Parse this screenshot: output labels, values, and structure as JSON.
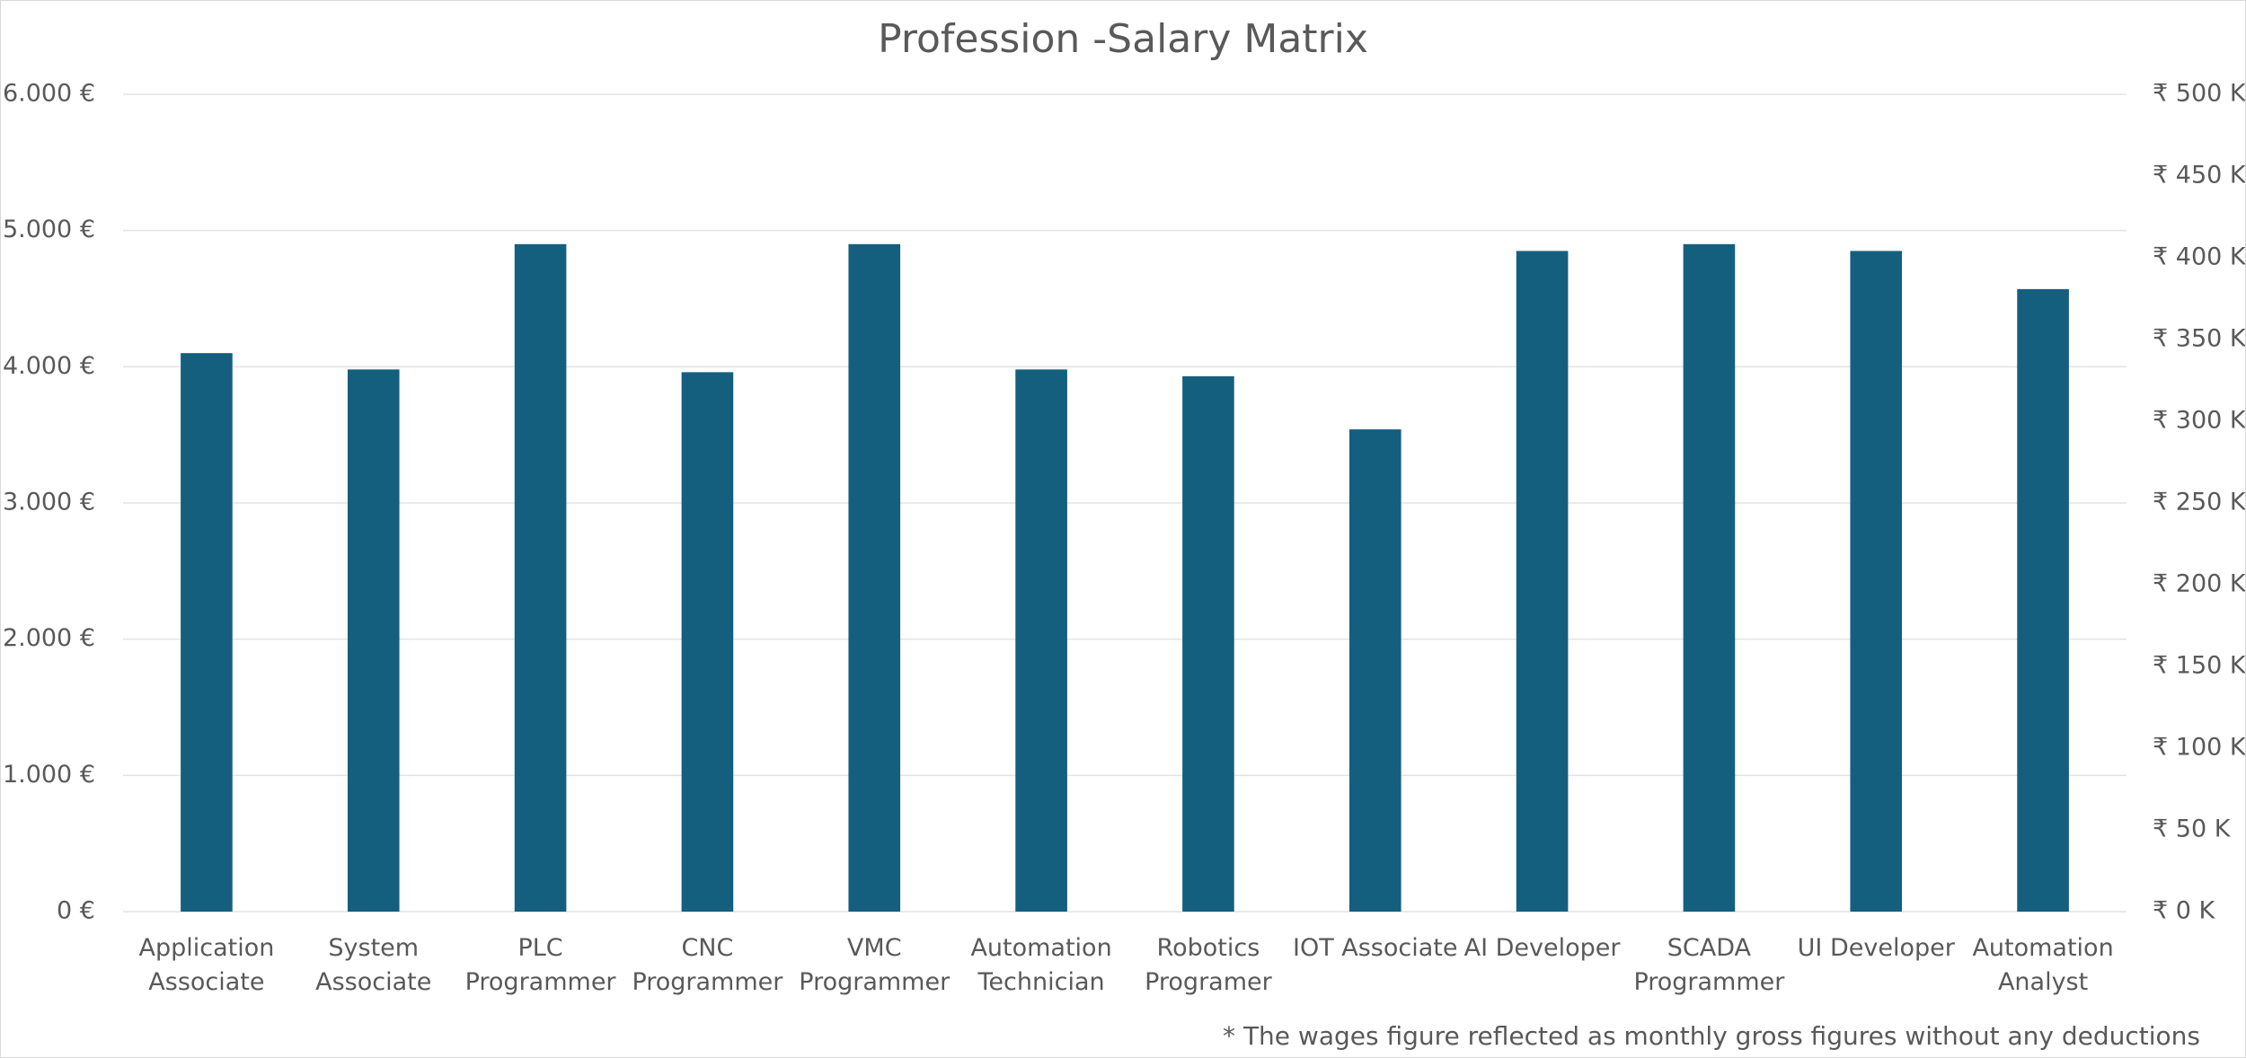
{
  "chart_data": {
    "type": "bar",
    "title": "Profession -Salary Matrix",
    "categories": [
      "Application Associate",
      "System Associate",
      "PLC Programmer",
      "CNC Programmer",
      "VMC Programmer",
      "Automation Technician",
      "Robotics Programer",
      "IOT Associate",
      "AI Developer",
      "SCADA Programmer",
      "UI Developer",
      "Automation Analyst"
    ],
    "series": [
      {
        "name": "Salary",
        "color": "#155f7e",
        "values": [
          4100,
          3980,
          4900,
          3960,
          4900,
          3980,
          3930,
          3540,
          4850,
          4900,
          4850,
          4570
        ]
      }
    ],
    "ylim": [
      0,
      6000
    ],
    "yticks": [
      {
        "value": 0,
        "label": "0 €"
      },
      {
        "value": 1000,
        "label": "1.000 €"
      },
      {
        "value": 2000,
        "label": "2.000 €"
      },
      {
        "value": 3000,
        "label": "3.000 €"
      },
      {
        "value": 4000,
        "label": "4.000 €"
      },
      {
        "value": 5000,
        "label": "5.000 €"
      },
      {
        "value": 6000,
        "label": "6.000 €"
      }
    ],
    "y2lim": [
      0,
      500
    ],
    "y2ticks": [
      {
        "value": 0,
        "label": "₹ 0 K"
      },
      {
        "value": 50,
        "label": "₹ 50 K"
      },
      {
        "value": 100,
        "label": "₹ 100 K"
      },
      {
        "value": 150,
        "label": "₹ 150 K"
      },
      {
        "value": 200,
        "label": "₹ 200 K"
      },
      {
        "value": 250,
        "label": "₹ 250 K"
      },
      {
        "value": 300,
        "label": "₹ 300 K"
      },
      {
        "value": 350,
        "label": "₹ 350 K"
      },
      {
        "value": 400,
        "label": "₹ 400 K"
      },
      {
        "value": 450,
        "label": "₹ 450 K"
      },
      {
        "value": 500,
        "label": "₹ 500 K"
      }
    ],
    "grid": true,
    "footnote": "* The wages figure reflected as monthly gross figures without any deductions"
  }
}
